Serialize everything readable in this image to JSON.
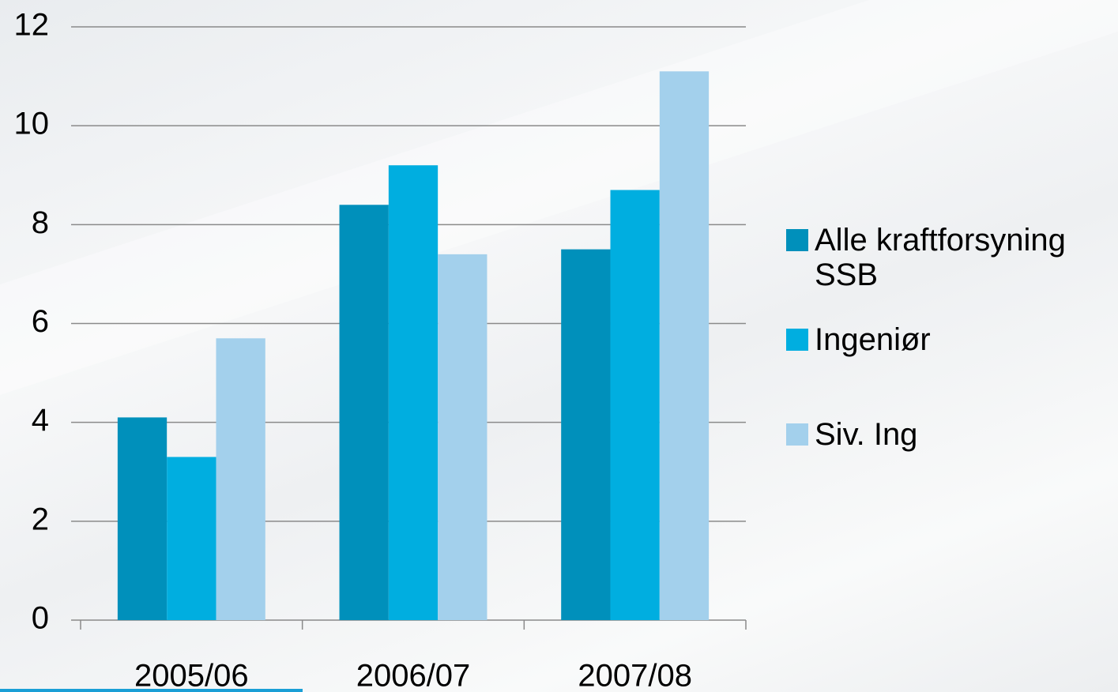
{
  "chart_data": {
    "type": "bar",
    "categories": [
      "2005/06",
      "2006/07",
      "2007/08"
    ],
    "series": [
      {
        "name": "Alle kraftforsyning SSB",
        "color": "#0090bb",
        "values": [
          4.1,
          8.4,
          7.5
        ]
      },
      {
        "name": "Ingeniør",
        "color": "#00aee0",
        "values": [
          3.3,
          9.2,
          8.7
        ]
      },
      {
        "name": "Siv. Ing",
        "color": "#a3d0ec",
        "values": [
          5.7,
          7.4,
          11.1
        ]
      }
    ],
    "ylim": [
      0,
      12
    ],
    "yticks": [
      0,
      2,
      4,
      6,
      8,
      10,
      12
    ],
    "grid": true,
    "legend": "right"
  }
}
